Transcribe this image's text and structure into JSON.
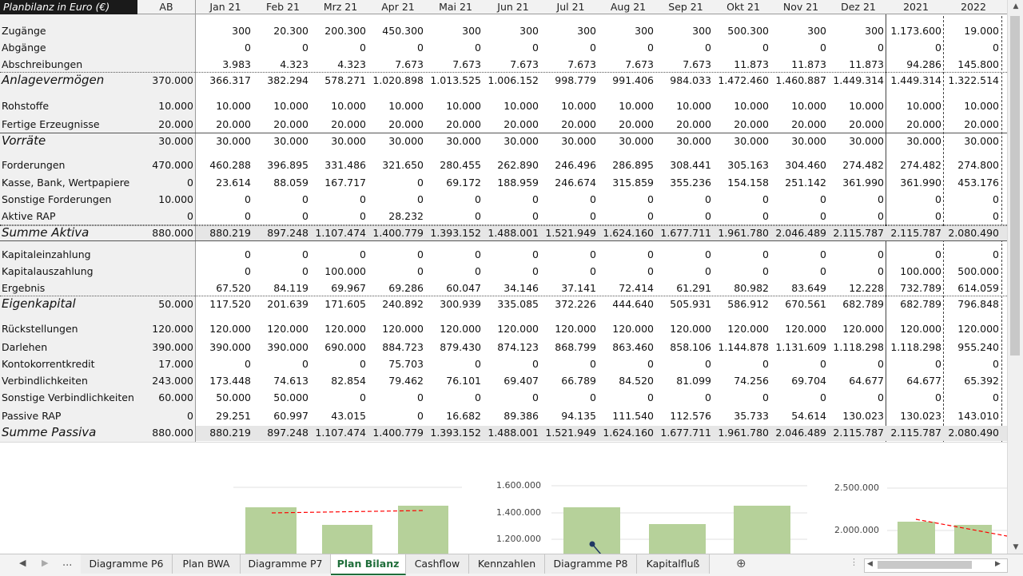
{
  "sheet": {
    "title": "Planbilanz in Euro (€)",
    "columns": [
      "AB",
      "Jan 21",
      "Feb 21",
      "Mrz 21",
      "Apr 21",
      "Mai 21",
      "Jun 21",
      "Jul 21",
      "Aug 21",
      "Sep 21",
      "Okt 21",
      "Nov 21",
      "Dez 21",
      "2021",
      "2022"
    ],
    "rows": [
      {
        "label": "Zugänge",
        "values": [
          "",
          "300",
          "20.300",
          "200.300",
          "450.300",
          "300",
          "300",
          "300",
          "300",
          "300",
          "500.300",
          "300",
          "300",
          "1.173.600",
          "19.000"
        ]
      },
      {
        "label": "Abgänge",
        "values": [
          "",
          "0",
          "0",
          "0",
          "0",
          "0",
          "0",
          "0",
          "0",
          "0",
          "0",
          "0",
          "0",
          "0",
          "0"
        ]
      },
      {
        "label": "Abschreibungen",
        "values": [
          "",
          "3.983",
          "4.323",
          "4.323",
          "7.673",
          "7.673",
          "7.673",
          "7.673",
          "7.673",
          "7.673",
          "11.873",
          "11.873",
          "11.873",
          "94.286",
          "145.800"
        ]
      },
      {
        "label": "Anlagevermögen",
        "values": [
          "370.000",
          "366.317",
          "382.294",
          "578.271",
          "1.020.898",
          "1.013.525",
          "1.006.152",
          "998.779",
          "991.406",
          "984.033",
          "1.472.460",
          "1.460.887",
          "1.449.314",
          "1.449.314",
          "1.322.514"
        ]
      },
      {
        "label": "Rohstoffe",
        "values": [
          "10.000",
          "10.000",
          "10.000",
          "10.000",
          "10.000",
          "10.000",
          "10.000",
          "10.000",
          "10.000",
          "10.000",
          "10.000",
          "10.000",
          "10.000",
          "10.000",
          "10.000"
        ]
      },
      {
        "label": "Fertige Erzeugnisse",
        "values": [
          "20.000",
          "20.000",
          "20.000",
          "20.000",
          "20.000",
          "20.000",
          "20.000",
          "20.000",
          "20.000",
          "20.000",
          "20.000",
          "20.000",
          "20.000",
          "20.000",
          "20.000"
        ]
      },
      {
        "label": "Vorräte",
        "values": [
          "30.000",
          "30.000",
          "30.000",
          "30.000",
          "30.000",
          "30.000",
          "30.000",
          "30.000",
          "30.000",
          "30.000",
          "30.000",
          "30.000",
          "30.000",
          "30.000",
          "30.000"
        ]
      },
      {
        "label": "Forderungen",
        "values": [
          "470.000",
          "460.288",
          "396.895",
          "331.486",
          "321.650",
          "280.455",
          "262.890",
          "246.496",
          "286.895",
          "308.441",
          "305.163",
          "304.460",
          "274.482",
          "274.482",
          "274.800"
        ]
      },
      {
        "label": "Kasse, Bank, Wertpapiere",
        "values": [
          "0",
          "23.614",
          "88.059",
          "167.717",
          "0",
          "69.172",
          "188.959",
          "246.674",
          "315.859",
          "355.236",
          "154.158",
          "251.142",
          "361.990",
          "361.990",
          "453.176"
        ]
      },
      {
        "label": "Sonstige Forderungen",
        "values": [
          "10.000",
          "0",
          "0",
          "0",
          "0",
          "0",
          "0",
          "0",
          "0",
          "0",
          "0",
          "0",
          "0",
          "0",
          "0"
        ]
      },
      {
        "label": "Aktive RAP",
        "values": [
          "0",
          "0",
          "0",
          "0",
          "28.232",
          "0",
          "0",
          "0",
          "0",
          "0",
          "0",
          "0",
          "0",
          "0",
          "0"
        ]
      },
      {
        "label": "Summe Aktiva",
        "values": [
          "880.000",
          "880.219",
          "897.248",
          "1.107.474",
          "1.400.779",
          "1.393.152",
          "1.488.001",
          "1.521.949",
          "1.624.160",
          "1.677.711",
          "1.961.780",
          "2.046.489",
          "2.115.787",
          "2.115.787",
          "2.080.490"
        ]
      },
      {
        "label": "Kapitaleinzahlung",
        "values": [
          "",
          "0",
          "0",
          "0",
          "0",
          "0",
          "0",
          "0",
          "0",
          "0",
          "0",
          "0",
          "0",
          "0",
          "0"
        ]
      },
      {
        "label": "Kapitalauszahlung",
        "values": [
          "",
          "0",
          "0",
          "100.000",
          "0",
          "0",
          "0",
          "0",
          "0",
          "0",
          "0",
          "0",
          "0",
          "100.000",
          "500.000"
        ]
      },
      {
        "label": "Ergebnis",
        "values": [
          "",
          "67.520",
          "84.119",
          "69.967",
          "69.286",
          "60.047",
          "34.146",
          "37.141",
          "72.414",
          "61.291",
          "80.982",
          "83.649",
          "12.228",
          "732.789",
          "614.059"
        ]
      },
      {
        "label": "Eigenkapital",
        "values": [
          "50.000",
          "117.520",
          "201.639",
          "171.605",
          "240.892",
          "300.939",
          "335.085",
          "372.226",
          "444.640",
          "505.931",
          "586.912",
          "670.561",
          "682.789",
          "682.789",
          "796.848"
        ]
      },
      {
        "label": "Rückstellungen",
        "values": [
          "120.000",
          "120.000",
          "120.000",
          "120.000",
          "120.000",
          "120.000",
          "120.000",
          "120.000",
          "120.000",
          "120.000",
          "120.000",
          "120.000",
          "120.000",
          "120.000",
          "120.000"
        ]
      },
      {
        "label": "Darlehen",
        "values": [
          "390.000",
          "390.000",
          "390.000",
          "690.000",
          "884.723",
          "879.430",
          "874.123",
          "868.799",
          "863.460",
          "858.106",
          "1.144.878",
          "1.131.609",
          "1.118.298",
          "1.118.298",
          "955.240"
        ]
      },
      {
        "label": "Kontokorrentkredit",
        "values": [
          "17.000",
          "0",
          "0",
          "0",
          "75.703",
          "0",
          "0",
          "0",
          "0",
          "0",
          "0",
          "0",
          "0",
          "0",
          "0"
        ]
      },
      {
        "label": "Verbindlichkeiten",
        "values": [
          "243.000",
          "173.448",
          "74.613",
          "82.854",
          "79.462",
          "76.101",
          "69.407",
          "66.789",
          "84.520",
          "81.099",
          "74.256",
          "69.704",
          "64.677",
          "64.677",
          "65.392"
        ]
      },
      {
        "label": "Sonstige Verbindlichkeiten",
        "values": [
          "60.000",
          "50.000",
          "50.000",
          "0",
          "0",
          "0",
          "0",
          "0",
          "0",
          "0",
          "0",
          "0",
          "0",
          "0",
          "0"
        ]
      },
      {
        "label": "Passive RAP",
        "values": [
          "0",
          "29.251",
          "60.997",
          "43.015",
          "0",
          "16.682",
          "89.386",
          "94.135",
          "111.540",
          "112.576",
          "35.733",
          "54.614",
          "130.023",
          "130.023",
          "143.010"
        ]
      },
      {
        "label": "Summe Passiva",
        "values": [
          "880.000",
          "880.219",
          "897.248",
          "1.107.474",
          "1.400.779",
          "1.393.152",
          "1.488.001",
          "1.521.949",
          "1.624.160",
          "1.677.711",
          "1.961.780",
          "2.046.489",
          "2.115.787",
          "2.115.787",
          "2.080.490"
        ]
      }
    ]
  },
  "charts": {
    "mid_ticks": [
      "1.600.000",
      "1.400.000",
      "1.200.000"
    ],
    "right_ticks": [
      "2.500.000",
      "2.000.000"
    ],
    "colors": {
      "bar": "#b6d19a",
      "trend": "#ff0000",
      "marker": "#1f3864"
    }
  },
  "tabs": {
    "ellipsis": "...",
    "items": [
      "Diagramme P6",
      "Plan BWA",
      "Diagramme P7",
      "Plan Bilanz",
      "Cashflow",
      "Kennzahlen",
      "Diagramme P8",
      "Kapitalfluß"
    ],
    "active": "Plan Bilanz"
  },
  "icons": {
    "prev_sheet": "triangle-left",
    "next_sheet": "triangle-right",
    "add_sheet": "plus-circle",
    "scroll_up": "triangle-up",
    "scroll_down": "triangle-down",
    "scroll_left": "triangle-left",
    "scroll_right": "triangle-right"
  }
}
